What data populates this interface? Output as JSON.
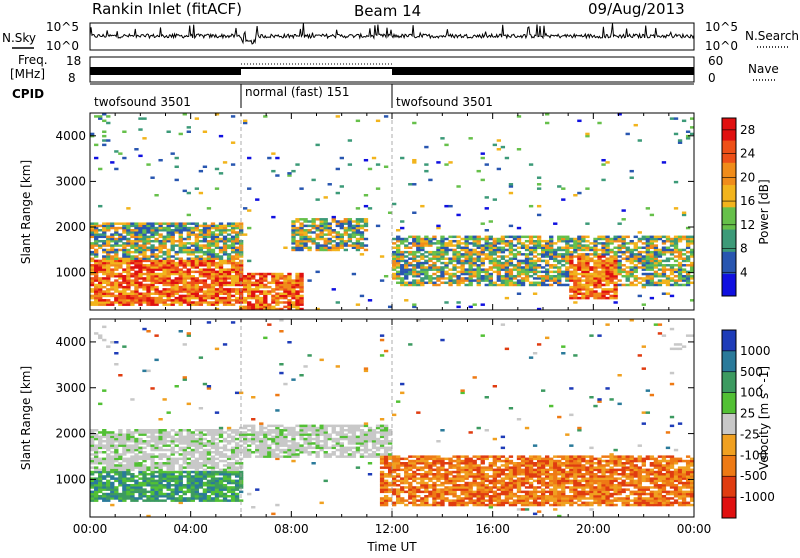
{
  "header": {
    "station": "Rankin Inlet (fitACF)",
    "beam": "Beam 14",
    "date": "09/Aug/2013"
  },
  "noise_panel": {
    "left_label": "N.Sky",
    "right_label": "N.Search",
    "tick_top": "10^5",
    "tick_bottom": "10^0"
  },
  "freq_panel": {
    "left_label_1": "Freq.",
    "left_label_2": "[MHz]",
    "left_ticks": [
      "18",
      "8"
    ],
    "right_label": "Nave",
    "right_ticks": [
      "60",
      "0"
    ]
  },
  "cpid_panel": {
    "label": "CPID",
    "segments": [
      {
        "name": "twofsound 3501",
        "start_hour": 0,
        "end_hour": 6
      },
      {
        "name": "normal (fast) 151",
        "start_hour": 6,
        "end_hour": 12
      },
      {
        "name": "twofsound 3501",
        "start_hour": 12,
        "end_hour": 24
      }
    ]
  },
  "chart_data": [
    {
      "type": "heatmap",
      "name": "power",
      "ylabel": "Slant Range [km]",
      "yticks": [
        "1000",
        "2000",
        "3000",
        "4000"
      ],
      "ylim": [
        180,
        4500
      ],
      "xlim": [
        0,
        24
      ],
      "colorbar": {
        "label": "Power [dB]",
        "ticks": [
          "4",
          "8",
          "12",
          "16",
          "20",
          "24",
          "28"
        ],
        "range": [
          0,
          30
        ],
        "colors": [
          "#1010e0",
          "#2856b0",
          "#3c9a78",
          "#66c04a",
          "#f2b41c",
          "#f08c1a",
          "#ee5018",
          "#e01010"
        ]
      },
      "regions": [
        {
          "x": [
            0,
            6
          ],
          "y": [
            300,
            1300
          ],
          "level": "high"
        },
        {
          "x": [
            0,
            6
          ],
          "y": [
            1300,
            2100
          ],
          "level": "mid"
        },
        {
          "x": [
            6,
            8.5
          ],
          "y": [
            180,
            1000
          ],
          "level": "high"
        },
        {
          "x": [
            8,
            11
          ],
          "y": [
            1500,
            2200
          ],
          "level": "mid"
        },
        {
          "x": [
            12,
            24
          ],
          "y": [
            700,
            1800
          ],
          "level": "mid"
        },
        {
          "x": [
            19,
            21
          ],
          "y": [
            400,
            1400
          ],
          "level": "high"
        }
      ]
    },
    {
      "type": "heatmap",
      "name": "velocity",
      "ylabel": "Slant Range [km]",
      "yticks": [
        "1000",
        "2000",
        "3000",
        "4000"
      ],
      "ylim": [
        180,
        4500
      ],
      "xlim": [
        0,
        24
      ],
      "xticks": [
        "00:00",
        "04:00",
        "08:00",
        "12:00",
        "16:00",
        "20:00",
        "00:00"
      ],
      "xlabel": "Time UT",
      "colorbar": {
        "label": "Velocity [m s^-1]",
        "ticks": [
          "1000",
          "500",
          "100",
          "25",
          "-25",
          "-100",
          "-500",
          "-1000"
        ],
        "colors": [
          "#1e3cb8",
          "#2a7a9a",
          "#3c9a60",
          "#52c034",
          "#c8c8c8",
          "#f0a020",
          "#ee7a14",
          "#e03c10",
          "#e01010"
        ]
      },
      "regions": [
        {
          "x": [
            0,
            6
          ],
          "y": [
            500,
            1200
          ],
          "level": "positive"
        },
        {
          "x": [
            0,
            6
          ],
          "y": [
            1200,
            2100
          ],
          "level": "near-zero"
        },
        {
          "x": [
            6,
            12
          ],
          "y": [
            1500,
            2200
          ],
          "level": "near-zero"
        },
        {
          "x": [
            11.5,
            24
          ],
          "y": [
            400,
            1500
          ],
          "level": "negative"
        }
      ]
    }
  ]
}
